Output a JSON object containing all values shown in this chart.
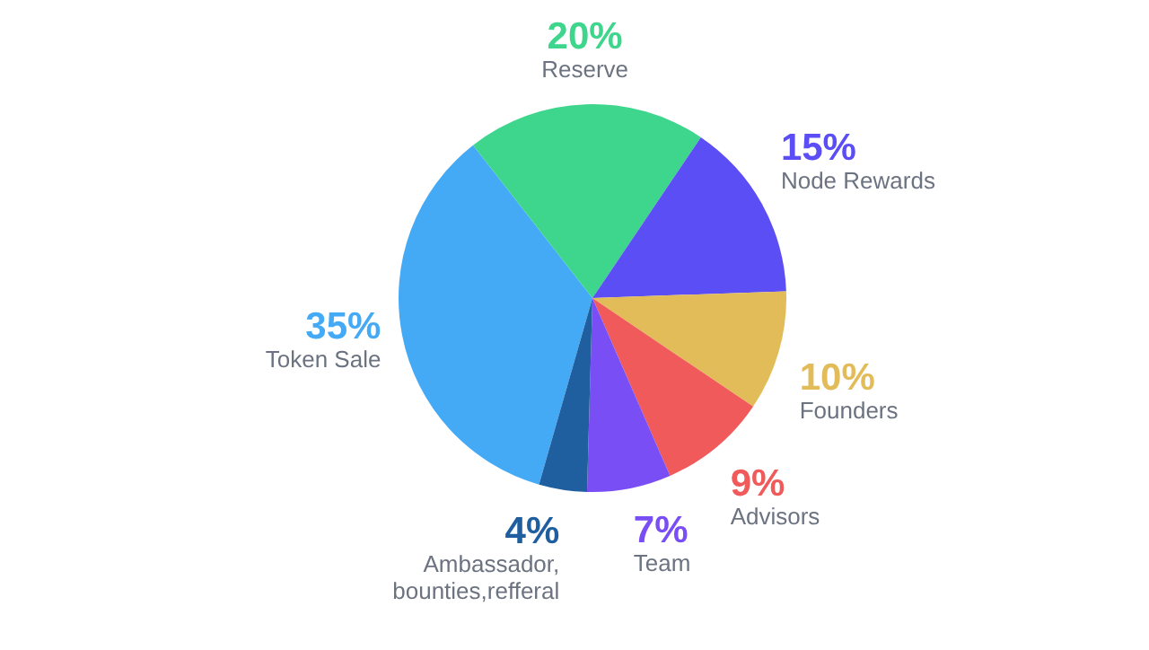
{
  "chart_data": {
    "type": "pie",
    "categories": [
      "Token Sale",
      "Reserve",
      "Node Rewards",
      "Founders",
      "Advisors",
      "Team",
      "Ambassador, bounties,refferal"
    ],
    "values": [
      35,
      20,
      15,
      10,
      9,
      7,
      4
    ],
    "value_labels": [
      "35%",
      "20%",
      "15%",
      "10%",
      "9%",
      "7%",
      "4%"
    ],
    "colors": [
      "#45aaf6",
      "#3dd68c",
      "#5b4ef5",
      "#e3bc5a",
      "#f05a5a",
      "#7a4ef5",
      "#1f5fa0"
    ]
  }
}
